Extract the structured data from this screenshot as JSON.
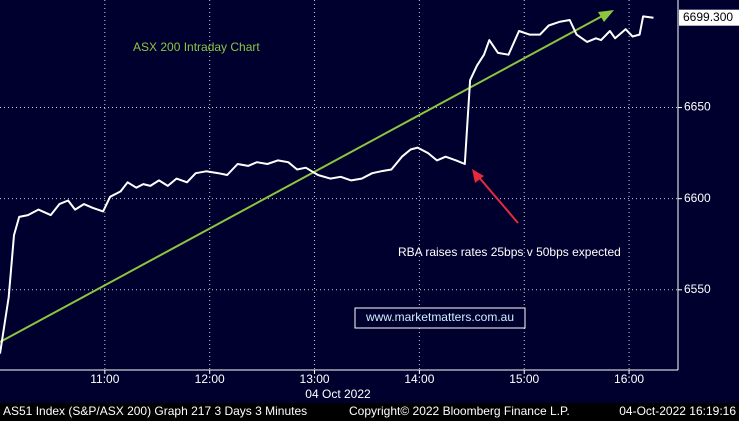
{
  "chart_data": {
    "type": "line",
    "annotations": {
      "chart_label": "ASX 200 Intraday Chart",
      "event": "RBA raises rates 25bps v 50bps expected",
      "website": "www.marketmatters.com.au"
    },
    "x_label": "04 Oct 2022",
    "footer": [
      "AS51 Index (S&P/ASX 200) Graph 217 3 Days 3 Minutes",
      "Copyright© 2022 Bloomberg Finance L.P.",
      "04-Oct-2022 16:19:16"
    ],
    "x": [
      "10:00",
      "10:05",
      "10:08",
      "10:11",
      "10:16",
      "10:22",
      "10:29",
      "10:34",
      "10:39",
      "10:43",
      "10:48",
      "10:53",
      "10:59",
      "11:03",
      "11:09",
      "11:13",
      "11:18",
      "11:22",
      "11:26",
      "11:31",
      "11:36",
      "11:41",
      "11:47",
      "11:52",
      "11:58",
      "12:05",
      "12:10",
      "12:16",
      "12:22",
      "12:27",
      "12:33",
      "12:39",
      "12:45",
      "12:50",
      "12:55",
      "13:02",
      "13:09",
      "13:15",
      "13:21",
      "13:27",
      "13:33",
      "13:38",
      "13:44",
      "13:50",
      "13:55",
      "13:59",
      "14:05",
      "14:10",
      "14:15",
      "14:21",
      "14:26",
      "14:29",
      "14:33",
      "14:37",
      "14:40",
      "14:45",
      "14:51",
      "14:57",
      "15:03",
      "15:09",
      "15:14",
      "15:20",
      "15:26",
      "15:30",
      "15:36",
      "15:41",
      "15:44",
      "15:49",
      "15:52",
      "15:58",
      "16:02",
      "16:06",
      "16:08",
      "16:14"
    ],
    "values": [
      6515,
      6546,
      6580,
      6590,
      6591,
      6594,
      6591,
      6597,
      6599,
      6594,
      6597,
      6595,
      6593,
      6601,
      6604,
      6609,
      6606,
      6608,
      6607,
      6610,
      6607,
      6611,
      6609,
      6614,
      6615,
      6614,
      6613,
      6619,
      6618,
      6620,
      6619,
      6621,
      6620,
      6616,
      6617,
      6613,
      6611,
      6612,
      6610,
      6611,
      6614,
      6615,
      6616,
      6623,
      6627,
      6628,
      6625,
      6621,
      6623,
      6621,
      6619,
      6665,
      6673,
      6679,
      6687,
      6680,
      6679,
      6692,
      6690,
      6690,
      6695,
      6697,
      6698,
      6690,
      6686,
      6688,
      6687,
      6692,
      6688,
      6693,
      6689,
      6690,
      6700,
      6699.3
    ],
    "color": "#ffffff",
    "last_price": {
      "value": 6699.3,
      "label": "6699.300"
    },
    "xlim": [
      "10:00",
      "16:28"
    ],
    "xticks": [
      "11:00",
      "12:00",
      "13:00",
      "14:00",
      "15:00",
      "16:00"
    ],
    "ylim": [
      6506,
      6709
    ],
    "yticks": [
      6550,
      6600,
      6650
    ],
    "grid": true
  }
}
